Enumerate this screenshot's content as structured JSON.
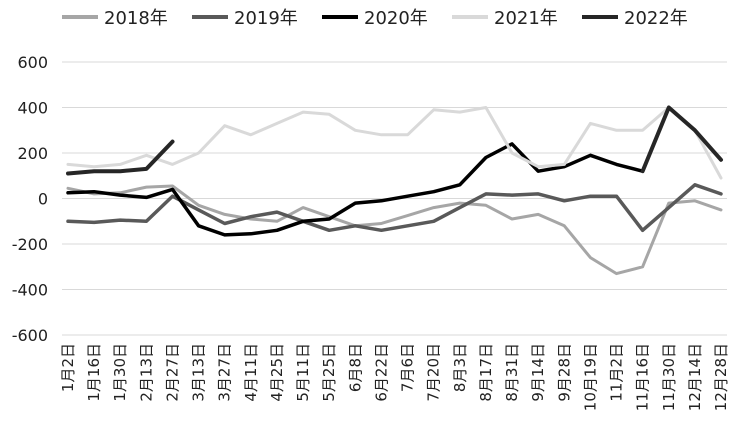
{
  "chart_data": {
    "type": "line",
    "title": "",
    "xlabel": "",
    "ylabel": "",
    "ylim": [
      -600,
      600
    ],
    "yticks": [
      -600,
      -400,
      -200,
      0,
      200,
      400,
      600
    ],
    "grid": "horizontal",
    "legend_position": "top",
    "categories": [
      "1月2日",
      "1月16日",
      "1月30日",
      "2月13日",
      "2月27日",
      "3月13日",
      "3月27日",
      "4月11日",
      "4月25日",
      "5月11日",
      "5月25日",
      "6月8日",
      "6月22日",
      "7月6日",
      "7月20日",
      "8月3日",
      "8月17日",
      "8月31日",
      "9月14日",
      "9月28日",
      "10月19日",
      "11月2日",
      "11月16日",
      "11月30日",
      "12月14日",
      "12月28日"
    ],
    "series": [
      {
        "name": "2018年",
        "color": "#a6a6a6",
        "width": 3,
        "values": [
          45,
          20,
          25,
          50,
          55,
          -30,
          -70,
          -90,
          -100,
          -40,
          -80,
          -120,
          -110,
          -75,
          -40,
          -20,
          -30,
          -90,
          -70,
          -120,
          -260,
          -330,
          -300,
          -20,
          -10,
          -50
        ]
      },
      {
        "name": "2019年",
        "color": "#595959",
        "width": 3.5,
        "values": [
          -100,
          -105,
          -95,
          -100,
          10,
          -50,
          -110,
          -80,
          -60,
          -100,
          -140,
          -120,
          -140,
          -120,
          -100,
          -40,
          20,
          15,
          20,
          -10,
          10,
          10,
          -140,
          -40,
          60,
          20
        ]
      },
      {
        "name": "2020年",
        "color": "#000000",
        "width": 3.5,
        "values": [
          25,
          30,
          15,
          5,
          40,
          -120,
          -160,
          -155,
          -140,
          -100,
          -90,
          -20,
          -10,
          10,
          30,
          60,
          180,
          240,
          120,
          140,
          190,
          150,
          120,
          null,
          null,
          null
        ]
      },
      {
        "name": "2021年",
        "color": "#d9d9d9",
        "width": 3,
        "values": [
          150,
          140,
          150,
          190,
          150,
          200,
          320,
          280,
          330,
          380,
          370,
          300,
          280,
          280,
          390,
          380,
          400,
          200,
          140,
          150,
          330,
          300,
          300,
          400,
          300,
          90
        ]
      },
      {
        "name": "2022年",
        "color": "#262626",
        "width": 4,
        "values": [
          110,
          120,
          120,
          130,
          250,
          null,
          null,
          null,
          null,
          null,
          null,
          null,
          null,
          null,
          null,
          null,
          null,
          null,
          null,
          null,
          null,
          null,
          120,
          400,
          300,
          170
        ]
      }
    ]
  }
}
